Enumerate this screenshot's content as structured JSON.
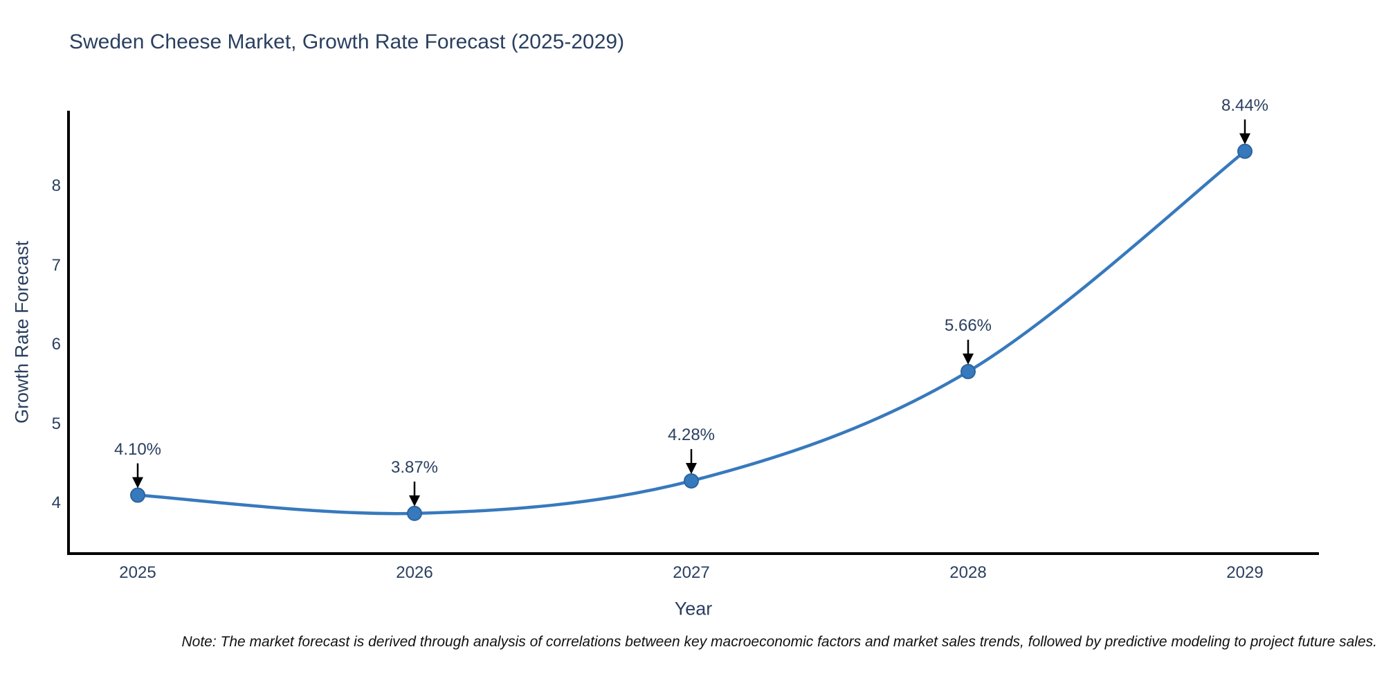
{
  "title": "Sweden Cheese Market, Growth Rate Forecast (2025-2029)",
  "note": "Note: The market forecast is derived through analysis of correlations between key macroeconomic factors and market sales trends, followed by predictive modeling to project future sales.",
  "chart_data": {
    "type": "line",
    "title": "Sweden Cheese Market, Growth Rate Forecast (2025-2029)",
    "xlabel": "Year",
    "ylabel": "Growth Rate Forecast",
    "x": [
      2025,
      2026,
      2027,
      2028,
      2029
    ],
    "values": [
      4.1,
      3.87,
      4.28,
      5.66,
      8.44
    ],
    "point_labels": [
      "4.10%",
      "3.87%",
      "4.28%",
      "5.66%",
      "8.44%"
    ],
    "x_tick_labels": [
      "2025",
      "2026",
      "2027",
      "2028",
      "2029"
    ],
    "y_ticks": [
      4,
      5,
      6,
      7,
      8
    ],
    "xlim": [
      2024.75,
      2029.27
    ],
    "ylim": [
      3.36,
      8.95
    ],
    "grid": false,
    "legend_position": "none",
    "line_shape": "spline",
    "line_color": "#3779bd",
    "marker_color": "#3779bd",
    "marker_edge_color": "#2c649e",
    "axis_color": "#000000",
    "annotation_arrow_color": "#000000",
    "text_color": "#2a3f5f"
  }
}
